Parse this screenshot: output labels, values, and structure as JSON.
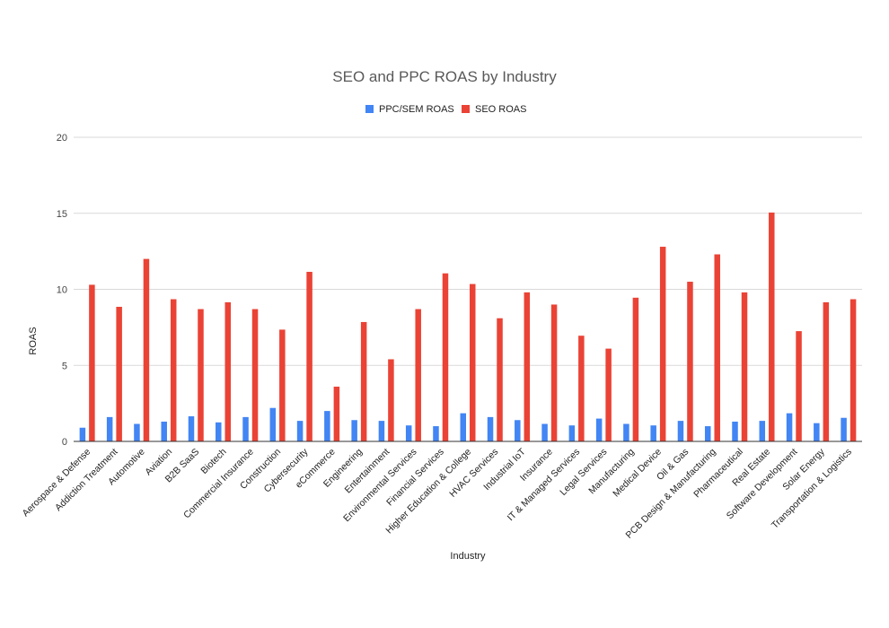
{
  "chart_data": {
    "type": "bar",
    "title": "SEO and PPC ROAS by Industry",
    "xlabel": "Industry",
    "ylabel": "ROAS",
    "ylim": [
      0,
      20
    ],
    "yticks": [
      0,
      5,
      10,
      15,
      20
    ],
    "grid": true,
    "legend_position": "top",
    "categories": [
      "Aerospace & Defense",
      "Addiction Treatment",
      "Automotive",
      "Aviation",
      "B2B SaaS",
      "Biotech",
      "Commercial Insurance",
      "Construction",
      "Cybersecurity",
      "eCommerce",
      "Engineering",
      "Entertainment",
      "Environmental Services",
      "Financial Services",
      "Higher Education & College",
      "HVAC Services",
      "Industrial IoT",
      "Insurance",
      "IT & Managed Services",
      "Legal Services",
      "Manufacturing",
      "Medical Device",
      "Oil & Gas",
      "PCB Design & Manufacturing",
      "Pharmaceutical",
      "Real Estate",
      "Software Development",
      "Solar Energy",
      "Transportation & Logistics"
    ],
    "series": [
      {
        "name": "PPC/SEM ROAS",
        "color": "#4285f4",
        "values": [
          0.9,
          1.6,
          1.15,
          1.3,
          1.65,
          1.25,
          1.6,
          2.2,
          1.35,
          2.0,
          1.4,
          1.35,
          1.05,
          1.0,
          1.85,
          1.6,
          1.4,
          1.15,
          1.05,
          1.5,
          1.15,
          1.05,
          1.35,
          1.0,
          1.3,
          1.35,
          1.85,
          1.2,
          1.55
        ]
      },
      {
        "name": "SEO ROAS",
        "color": "#ea4335",
        "values": [
          10.3,
          8.85,
          12.0,
          9.35,
          8.7,
          9.15,
          8.7,
          7.35,
          11.15,
          3.6,
          7.85,
          5.4,
          8.7,
          11.05,
          10.35,
          8.1,
          9.8,
          9.0,
          6.95,
          6.1,
          9.45,
          12.8,
          10.5,
          12.3,
          9.8,
          15.05,
          7.25,
          9.15,
          9.35
        ]
      }
    ]
  }
}
